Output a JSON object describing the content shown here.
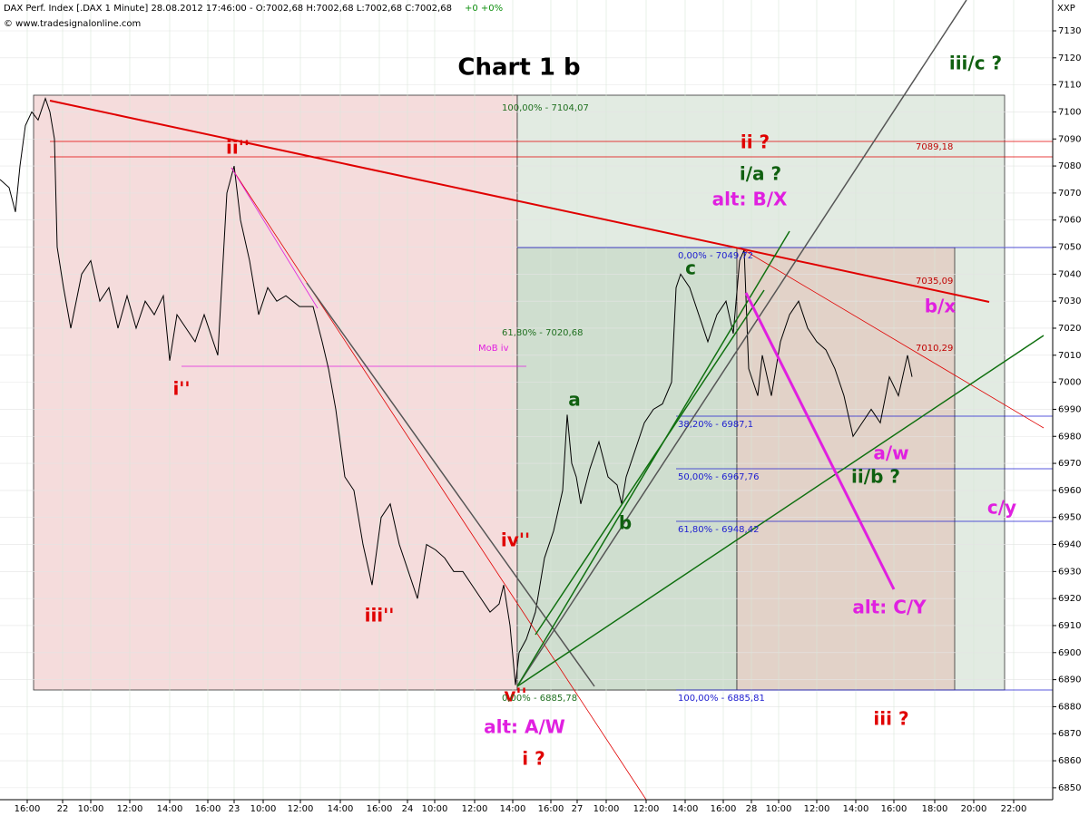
{
  "chart_data": {
    "type": "line",
    "header": "DAX Perf. Index [.DAX  1 Minute] 28.08.2012 17:46:00 - O:7002,68 H:7002,68 L:7002,68 C:7002,68",
    "change": "+0 +0%",
    "source": "© www.tradesignalonline.com",
    "corner_label": "XXP",
    "title": "Chart 1 b",
    "xlim": [
      0,
      116
    ],
    "ylim": [
      6845.6,
      7141.4
    ],
    "xticks": [
      {
        "value": 3.0,
        "label": "16:00"
      },
      {
        "value": 6.9,
        "label": "22"
      },
      {
        "value": 10.0,
        "label": "10:00"
      },
      {
        "value": 14.3,
        "label": "12:00"
      },
      {
        "value": 18.7,
        "label": "14:00"
      },
      {
        "value": 22.9,
        "label": "16:00"
      },
      {
        "value": 25.8,
        "label": "23"
      },
      {
        "value": 29.0,
        "label": "10:00"
      },
      {
        "value": 33.1,
        "label": "12:00"
      },
      {
        "value": 37.5,
        "label": "14:00"
      },
      {
        "value": 41.8,
        "label": "16:00"
      },
      {
        "value": 44.9,
        "label": "24"
      },
      {
        "value": 47.9,
        "label": "10:00"
      },
      {
        "value": 52.3,
        "label": "12:00"
      },
      {
        "value": 56.5,
        "label": "14:00"
      },
      {
        "value": 60.7,
        "label": "16:00"
      },
      {
        "value": 63.6,
        "label": "27"
      },
      {
        "value": 66.8,
        "label": "10:00"
      },
      {
        "value": 71.2,
        "label": "12:00"
      },
      {
        "value": 75.5,
        "label": "14:00"
      },
      {
        "value": 79.7,
        "label": "16:00"
      },
      {
        "value": 82.8,
        "label": "28"
      },
      {
        "value": 85.8,
        "label": "10:00"
      },
      {
        "value": 90.0,
        "label": "12:00"
      },
      {
        "value": 94.3,
        "label": "14:00"
      },
      {
        "value": 98.5,
        "label": "16:00"
      },
      {
        "value": 103.0,
        "label": "18:00"
      },
      {
        "value": 107.3,
        "label": "20:00"
      },
      {
        "value": 111.7,
        "label": "22:00"
      }
    ],
    "yticks": [
      6850,
      6860,
      6870,
      6880,
      6890,
      6900,
      6910,
      6920,
      6930,
      6940,
      6950,
      6960,
      6970,
      6980,
      6990,
      7000,
      7010,
      7020,
      7030,
      7040,
      7050,
      7060,
      7070,
      7080,
      7090,
      7100,
      7110,
      7120,
      7130
    ],
    "grid": true,
    "series": [
      {
        "color": "#000000",
        "x": [
          0,
          1,
          1.7,
          2.2,
          2.8,
          3.5,
          4.2,
          5,
          5.5,
          6,
          6.3,
          7,
          7.8,
          9,
          10,
          11,
          12,
          13,
          14,
          15,
          16,
          17,
          18,
          18.7,
          19.5,
          20.5,
          21.5,
          22.5,
          24,
          25,
          25.8,
          26.5,
          27.5,
          28.5,
          29.5,
          30.5,
          31.5,
          33,
          34.5,
          35.5,
          36.2,
          37,
          38,
          39,
          40,
          41,
          42,
          43,
          44,
          45,
          46,
          47,
          48,
          49,
          50,
          51,
          52,
          53,
          54,
          55,
          55.5,
          56.2,
          56.8,
          57.2,
          58,
          59,
          60,
          61,
          62,
          62.5,
          63,
          63.5,
          64,
          65,
          66,
          67,
          68,
          68.5,
          69,
          70,
          71,
          72,
          73,
          74,
          74.5,
          75,
          76,
          77,
          78,
          79,
          80,
          80.8,
          81.5,
          82,
          82.5,
          83,
          83.5,
          84,
          85,
          86,
          87,
          88,
          89,
          90,
          91,
          92,
          93,
          94,
          95,
          96,
          97,
          98,
          99,
          100,
          100.5
        ],
        "values": [
          7075,
          7072,
          7063,
          7080,
          7095,
          7100,
          7097,
          7105,
          7100,
          7090,
          7050,
          7035,
          7020,
          7040,
          7045,
          7030,
          7035,
          7020,
          7032,
          7020,
          7030,
          7025,
          7032,
          7008,
          7025,
          7020,
          7015,
          7025,
          7010,
          7070,
          7080,
          7060,
          7045,
          7025,
          7035,
          7030,
          7032,
          7028,
          7028,
          7015,
          7005,
          6990,
          6965,
          6960,
          6940,
          6925,
          6950,
          6955,
          6940,
          6930,
          6920,
          6940,
          6938,
          6935,
          6930,
          6930,
          6925,
          6920,
          6915,
          6918,
          6925,
          6910,
          6888,
          6900,
          6905,
          6915,
          6935,
          6945,
          6960,
          6988,
          6970,
          6965,
          6955,
          6968,
          6978,
          6965,
          6962,
          6955,
          6965,
          6975,
          6985,
          6990,
          6992,
          7000,
          7035,
          7040,
          7035,
          7025,
          7015,
          7025,
          7030,
          7018,
          7045,
          7049,
          7005,
          7000,
          6995,
          7010,
          6995,
          7015,
          7025,
          7030,
          7020,
          7015,
          7012,
          7005,
          6995,
          6980,
          6985,
          6990,
          6985,
          7002,
          6995,
          7010,
          7002
        ]
      }
    ],
    "annotations": [
      {
        "text": "ii''",
        "color": "#e00000"
      },
      {
        "text": "i''",
        "color": "#e00000"
      },
      {
        "text": "iii''",
        "color": "#e00000"
      },
      {
        "text": "iv''",
        "color": "#e00000"
      },
      {
        "text": "v''",
        "color": "#e00000"
      },
      {
        "text": "i ?",
        "color": "#e00000"
      },
      {
        "text": "alt: A/W",
        "color": "#e020e0"
      },
      {
        "text": "ii ?",
        "color": "#e00000"
      },
      {
        "text": "i/a ?",
        "color": "#106010"
      },
      {
        "text": "alt: B/X",
        "color": "#e020e0"
      },
      {
        "text": "iii/c ?",
        "color": "#106010"
      },
      {
        "text": "a",
        "color": "#106010"
      },
      {
        "text": "b",
        "color": "#106010"
      },
      {
        "text": "c",
        "color": "#106010"
      },
      {
        "text": "b/x",
        "color": "#e020e0"
      },
      {
        "text": "c/y",
        "color": "#e020e0"
      },
      {
        "text": "a/w",
        "color": "#e020e0"
      },
      {
        "text": "ii/b ?",
        "color": "#106010"
      },
      {
        "text": "alt: C/Y",
        "color": "#e020e0"
      },
      {
        "text": "iii ?",
        "color": "#e00000"
      },
      {
        "text": "MoB iv",
        "color": "#e020e0"
      },
      {
        "text": "100,00% - 7104,07",
        "color": "#207020"
      },
      {
        "text": "61,80% - 7020,68",
        "color": "#207020"
      },
      {
        "text": "0,00% - 6885,78",
        "color": "#207020"
      },
      {
        "text": "0,00% - 7049,72",
        "color": "#2020d0"
      },
      {
        "text": "38,20% - 6987,1",
        "color": "#2020d0"
      },
      {
        "text": "50,00% - 6967,76",
        "color": "#2020d0"
      },
      {
        "text": "61,80% - 6948,42",
        "color": "#2020d0"
      },
      {
        "text": "100,00% - 6885,81",
        "color": "#2020d0"
      },
      {
        "text": "7089,18",
        "color": "#c00000"
      },
      {
        "text": "7035,09",
        "color": "#c00000"
      },
      {
        "text": "7010,29",
        "color": "#c00000"
      }
    ]
  }
}
